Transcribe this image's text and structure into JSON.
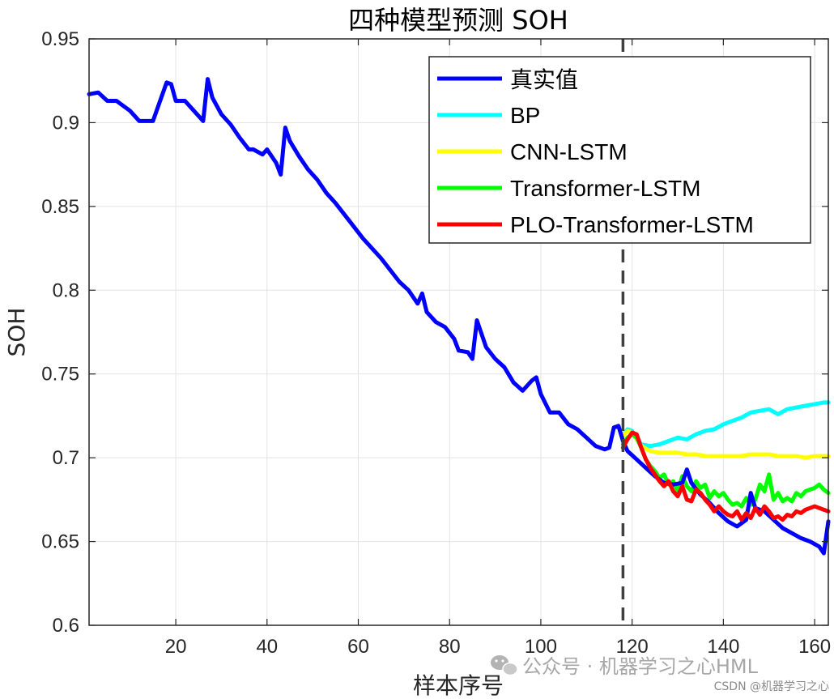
{
  "chart_data": {
    "type": "line",
    "title": "四种模型预测 SOH",
    "xlabel": "样本序号",
    "ylabel": "SOH",
    "xlim": [
      1,
      163
    ],
    "ylim": [
      0.6,
      0.95
    ],
    "xticks": [
      20,
      40,
      60,
      80,
      100,
      120,
      140,
      160
    ],
    "yticks": [
      0.6,
      0.65,
      0.7,
      0.75,
      0.8,
      0.85,
      0.9,
      0.95
    ],
    "ytick_labels": [
      "0.6",
      "0.65",
      "0.7",
      "0.75",
      "0.8",
      "0.85",
      "0.9",
      "0.95"
    ],
    "grid": true,
    "legend_position": "top-right",
    "split_line_x": 118,
    "series": [
      {
        "name": "真实值",
        "color": "#0000ff",
        "x": [
          1,
          3,
          5,
          7,
          10,
          12,
          13,
          15,
          18,
          19,
          20,
          22,
          24,
          26,
          27,
          28,
          30,
          32,
          34,
          36,
          37,
          39,
          40,
          42,
          43,
          44,
          45,
          47,
          49,
          51,
          53,
          55,
          57,
          59,
          61,
          63,
          65,
          67,
          69,
          71,
          73,
          74,
          75,
          77,
          79,
          81,
          82,
          84,
          85,
          86,
          88,
          90,
          92,
          94,
          96,
          98,
          99,
          100,
          102,
          104,
          106,
          108,
          110,
          112,
          114,
          115,
          116,
          117,
          118,
          119,
          121,
          123,
          125,
          127,
          129,
          131,
          132,
          133,
          135,
          137,
          139,
          141,
          143,
          145,
          146,
          147,
          149,
          151,
          153,
          155,
          157,
          159,
          161,
          162,
          163
        ],
        "values": [
          0.917,
          0.918,
          0.913,
          0.913,
          0.907,
          0.901,
          0.901,
          0.901,
          0.924,
          0.923,
          0.913,
          0.913,
          0.907,
          0.901,
          0.926,
          0.915,
          0.905,
          0.899,
          0.891,
          0.884,
          0.884,
          0.881,
          0.884,
          0.876,
          0.869,
          0.897,
          0.889,
          0.88,
          0.872,
          0.866,
          0.858,
          0.852,
          0.845,
          0.838,
          0.831,
          0.825,
          0.819,
          0.812,
          0.805,
          0.8,
          0.792,
          0.798,
          0.787,
          0.781,
          0.778,
          0.771,
          0.764,
          0.763,
          0.759,
          0.782,
          0.766,
          0.759,
          0.754,
          0.745,
          0.74,
          0.746,
          0.748,
          0.738,
          0.727,
          0.727,
          0.72,
          0.717,
          0.712,
          0.707,
          0.705,
          0.706,
          0.718,
          0.719,
          0.71,
          0.704,
          0.699,
          0.694,
          0.689,
          0.685,
          0.684,
          0.685,
          0.693,
          0.685,
          0.678,
          0.673,
          0.667,
          0.662,
          0.659,
          0.663,
          0.679,
          0.67,
          0.668,
          0.663,
          0.658,
          0.655,
          0.652,
          0.65,
          0.647,
          0.643,
          0.662
        ]
      },
      {
        "name": "BP",
        "color": "#00ffff",
        "x": [
          118,
          119,
          120,
          121,
          122,
          124,
          126,
          128,
          130,
          132,
          134,
          136,
          138,
          140,
          142,
          144,
          146,
          148,
          150,
          152,
          154,
          156,
          158,
          160,
          162,
          163
        ],
        "values": [
          0.713,
          0.717,
          0.716,
          0.712,
          0.708,
          0.707,
          0.708,
          0.71,
          0.712,
          0.711,
          0.714,
          0.716,
          0.717,
          0.72,
          0.722,
          0.724,
          0.727,
          0.728,
          0.729,
          0.726,
          0.729,
          0.73,
          0.731,
          0.732,
          0.733,
          0.733
        ]
      },
      {
        "name": "CNN-LSTM",
        "color": "#ffff00",
        "x": [
          118,
          119,
          120,
          121,
          122,
          124,
          126,
          128,
          130,
          132,
          134,
          136,
          138,
          140,
          142,
          144,
          146,
          148,
          150,
          152,
          154,
          156,
          158,
          160,
          162,
          163
        ],
        "values": [
          0.713,
          0.716,
          0.715,
          0.711,
          0.707,
          0.704,
          0.703,
          0.703,
          0.703,
          0.702,
          0.702,
          0.701,
          0.701,
          0.701,
          0.701,
          0.701,
          0.702,
          0.702,
          0.702,
          0.701,
          0.701,
          0.701,
          0.7,
          0.701,
          0.701,
          0.701
        ]
      },
      {
        "name": "Transformer-LSTM",
        "color": "#00ff00",
        "x": [
          118,
          119,
          120,
          121,
          122,
          123,
          124,
          125,
          126,
          127,
          128,
          129,
          130,
          131,
          132,
          133,
          134,
          135,
          136,
          137,
          138,
          139,
          140,
          141,
          142,
          143,
          144,
          145,
          146,
          147,
          148,
          149,
          150,
          151,
          152,
          153,
          154,
          155,
          156,
          157,
          158,
          159,
          160,
          161,
          162,
          163
        ],
        "values": [
          0.708,
          0.712,
          0.714,
          0.712,
          0.706,
          0.699,
          0.695,
          0.692,
          0.688,
          0.69,
          0.684,
          0.686,
          0.68,
          0.689,
          0.683,
          0.68,
          0.686,
          0.682,
          0.684,
          0.676,
          0.68,
          0.677,
          0.679,
          0.675,
          0.672,
          0.673,
          0.671,
          0.676,
          0.672,
          0.675,
          0.684,
          0.68,
          0.69,
          0.675,
          0.679,
          0.674,
          0.676,
          0.674,
          0.679,
          0.677,
          0.68,
          0.681,
          0.682,
          0.684,
          0.681,
          0.679
        ]
      },
      {
        "name": "PLO-Transformer-LSTM",
        "color": "#ff0000",
        "x": [
          118,
          119,
          120,
          121,
          122,
          123,
          124,
          125,
          126,
          127,
          128,
          129,
          130,
          131,
          132,
          133,
          134,
          135,
          136,
          137,
          138,
          139,
          140,
          141,
          142,
          143,
          144,
          145,
          146,
          147,
          148,
          149,
          150,
          151,
          152,
          153,
          154,
          155,
          156,
          157,
          158,
          159,
          160,
          161,
          162,
          163
        ],
        "values": [
          0.706,
          0.711,
          0.715,
          0.714,
          0.706,
          0.699,
          0.694,
          0.69,
          0.686,
          0.683,
          0.686,
          0.68,
          0.677,
          0.683,
          0.675,
          0.674,
          0.681,
          0.679,
          0.675,
          0.672,
          0.668,
          0.671,
          0.668,
          0.666,
          0.665,
          0.668,
          0.663,
          0.667,
          0.664,
          0.67,
          0.666,
          0.671,
          0.668,
          0.664,
          0.665,
          0.663,
          0.666,
          0.665,
          0.668,
          0.667,
          0.669,
          0.67,
          0.671,
          0.67,
          0.669,
          0.668
        ]
      }
    ]
  },
  "watermarks": {
    "wechat_icon": "wechat-icon",
    "main": "公众号 · 机器学习之心HML",
    "footer": "CSDN @机器学习之心"
  }
}
